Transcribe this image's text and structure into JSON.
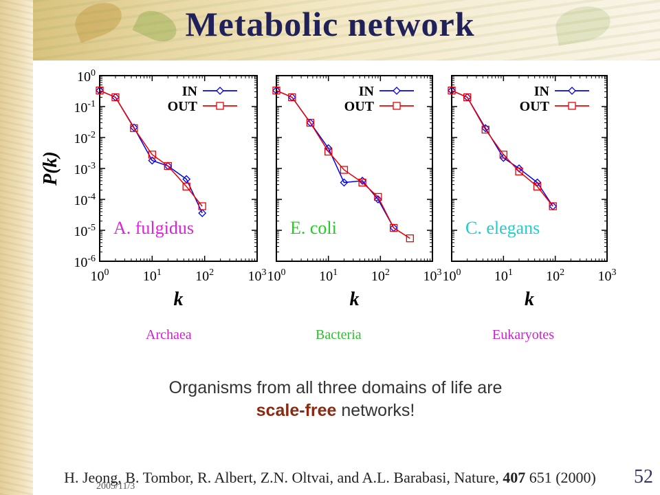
{
  "title": "Metabolic network",
  "colors": {
    "in_series": "#0000ee",
    "out_series": "#ee0000",
    "title": "#20205a",
    "emphasis": "#8b2a12"
  },
  "domain_labels": [
    {
      "text": "Archaea",
      "color": "#cc22cc"
    },
    {
      "text": "Bacteria",
      "color": "#33bb33"
    },
    {
      "text": "Eukaryotes",
      "color": "#cc22cc"
    }
  ],
  "conclusion": {
    "line1": "Organisms from all three domains of life are",
    "emphasis": "scale-free",
    "line2_rest": " networks!"
  },
  "citation": {
    "authors": "H. Jeong, B. Tombor, R. Albert, Z.N. Oltvai, and A.L. Barabasi, Nature, ",
    "volume": "407",
    "rest": " 651 (2000)"
  },
  "date": "2005/11/3",
  "slide_number": "52",
  "chart_data": [
    {
      "type": "line",
      "xscale": "log",
      "yscale": "log",
      "xlim": [
        1,
        1000
      ],
      "ylim": [
        1e-06,
        1
      ],
      "xlabel": "k",
      "ylabel": "P(k)",
      "xticks": [
        "10^0",
        "10^1",
        "10^2",
        "10^3"
      ],
      "yticks": [
        "10^0",
        "10^-1",
        "10^-2",
        "10^-3",
        "10^-4",
        "10^-5",
        "10^-6"
      ],
      "annotation": "A. fulgidus",
      "annotation_color": "#dd22dd",
      "legend": [
        "IN",
        "OUT"
      ],
      "series": [
        {
          "name": "IN",
          "x": [
            1,
            2,
            4.5,
            10,
            20,
            45,
            90
          ],
          "y": [
            0.33,
            0.2,
            0.021,
            0.0018,
            0.0012,
            0.00045,
            3.6e-05
          ]
        },
        {
          "name": "OUT",
          "x": [
            1,
            2,
            4.5,
            10,
            20,
            45,
            90
          ],
          "y": [
            0.33,
            0.2,
            0.02,
            0.0028,
            0.0012,
            0.00026,
            6e-05
          ]
        }
      ]
    },
    {
      "type": "line",
      "xscale": "log",
      "yscale": "log",
      "xlim": [
        1,
        1000
      ],
      "ylim": [
        1e-06,
        1
      ],
      "xlabel": "k",
      "ylabel": "",
      "xticks": [
        "10^0",
        "10^1",
        "10^2",
        "10^3"
      ],
      "yticks": [],
      "annotation": "E. coli",
      "annotation_color": "#22cc22",
      "legend": [
        "IN",
        "OUT"
      ],
      "series": [
        {
          "name": "IN",
          "x": [
            1,
            2,
            4.5,
            10,
            20,
            45,
            90,
            180
          ],
          "y": [
            0.33,
            0.2,
            0.03,
            0.0045,
            0.00035,
            0.0004,
            0.0001,
            1.2e-05
          ]
        },
        {
          "name": "OUT",
          "x": [
            1,
            2,
            4.5,
            10,
            20,
            45,
            90,
            180,
            370
          ],
          "y": [
            0.33,
            0.2,
            0.03,
            0.0035,
            0.0009,
            0.00035,
            0.00012,
            1.2e-05,
            5.5e-06
          ]
        }
      ]
    },
    {
      "type": "line",
      "xscale": "log",
      "yscale": "log",
      "xlim": [
        1,
        1000
      ],
      "ylim": [
        1e-06,
        1
      ],
      "xlabel": "k",
      "ylabel": "",
      "xticks": [
        "10^0",
        "10^1",
        "10^2",
        "10^3"
      ],
      "yticks": [],
      "annotation": "C. elegans",
      "annotation_color": "#22cccc",
      "legend": [
        "IN",
        "OUT"
      ],
      "series": [
        {
          "name": "IN",
          "x": [
            1,
            2,
            4.5,
            10,
            20,
            45,
            90
          ],
          "y": [
            0.33,
            0.2,
            0.02,
            0.0022,
            0.001,
            0.00035,
            6e-05
          ]
        },
        {
          "name": "OUT",
          "x": [
            1,
            2,
            4.5,
            10,
            20,
            45,
            90
          ],
          "y": [
            0.33,
            0.2,
            0.018,
            0.0028,
            0.0008,
            0.00026,
            6e-05
          ]
        }
      ]
    }
  ]
}
